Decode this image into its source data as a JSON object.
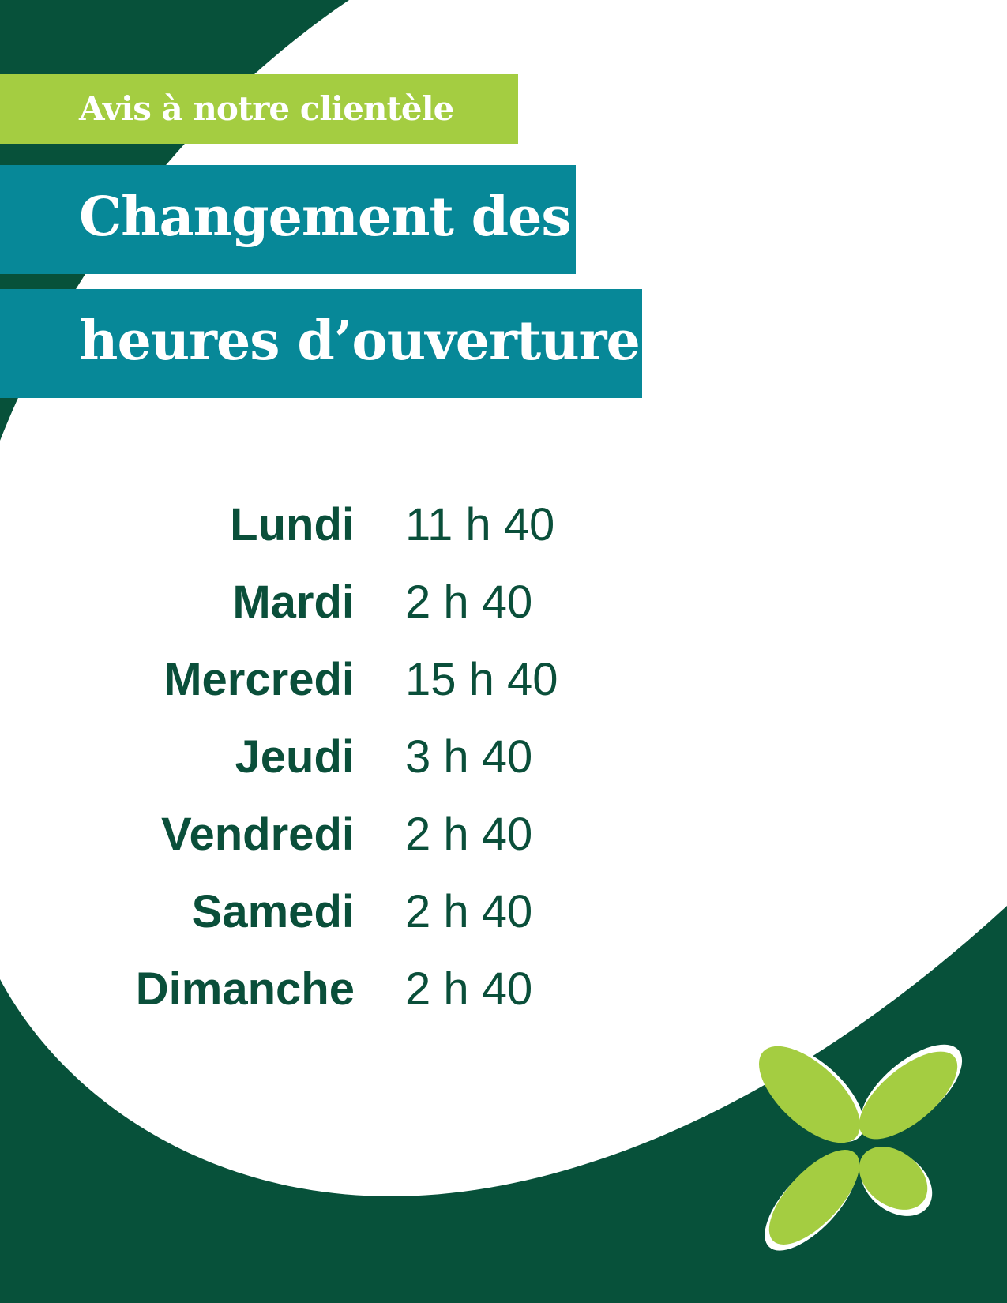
{
  "header": {
    "kicker": "Avis à notre clientèle",
    "title_line1": "Changement des",
    "title_line2": "heures d’ouverture"
  },
  "schedule": [
    {
      "day": "Lundi",
      "time": "11 h 40"
    },
    {
      "day": "Mardi",
      "time": "2 h 40"
    },
    {
      "day": "Mercredi",
      "time": "15 h 40"
    },
    {
      "day": "Jeudi",
      "time": "3 h 40"
    },
    {
      "day": "Vendredi",
      "time": "2 h 40"
    },
    {
      "day": "Samedi",
      "time": "2 h 40"
    },
    {
      "day": "Dimanche",
      "time": "2 h 40"
    }
  ],
  "colors": {
    "dark_green": "#07513a",
    "lime": "#a4cd41",
    "teal": "#078898",
    "white": "#ffffff"
  },
  "logo": {
    "icon": "four-petal-leaf-logo"
  }
}
